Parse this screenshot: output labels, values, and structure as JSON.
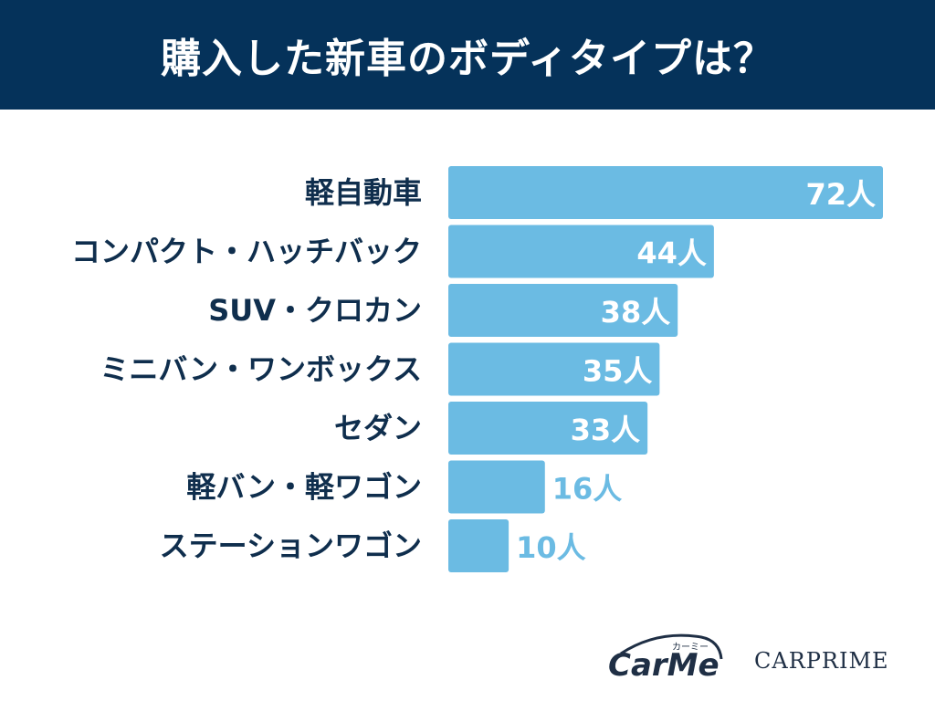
{
  "title": "購入した新車のボディタイプは？",
  "colors": {
    "header_bg": "#05325a",
    "bar": "#6bbbe3",
    "label": "#0f2e4d",
    "value_inside": "#ffffff",
    "value_outside": "#6bbbe3"
  },
  "chart_data": {
    "type": "bar",
    "orientation": "horizontal",
    "title": "購入した新車のボディタイプは？",
    "unit": "人",
    "categories": [
      "軽自動車",
      "コンパクト・ハッチバック",
      "SUV・クロカン",
      "ミニバン・ワンボックス",
      "セダン",
      "軽バン・軽ワゴン",
      "ステーションワゴン"
    ],
    "values": [
      72,
      44,
      38,
      35,
      33,
      16,
      10
    ],
    "value_labels": [
      "72人",
      "44人",
      "38人",
      "35人",
      "33人",
      "16人",
      "10人"
    ],
    "xlim": [
      0,
      72
    ],
    "grid": false,
    "legend": "none"
  },
  "logos": {
    "carme_wordmark": "CarMe",
    "carme_kana": "カーミー",
    "carprime": "CARPRIME"
  }
}
